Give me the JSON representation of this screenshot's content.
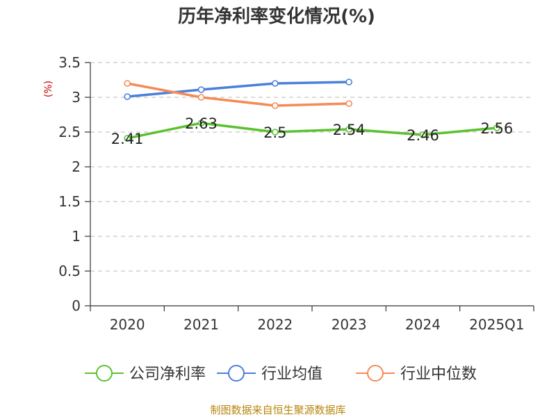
{
  "chart_data": {
    "type": "line",
    "title": "历年净利率变化情况(%)",
    "unit_label": "(%)",
    "categories": [
      "2020",
      "2021",
      "2022",
      "2023",
      "2024",
      "2025Q1"
    ],
    "ylim": [
      0,
      3.5
    ],
    "yticks": [
      0,
      0.5,
      1,
      1.5,
      2,
      2.5,
      3,
      3.5
    ],
    "ytick_labels": [
      "0",
      "0.5",
      "1",
      "1.5",
      "2",
      "2.5",
      "3",
      "3.5"
    ],
    "grid": true,
    "legend_position": "bottom",
    "series": [
      {
        "name": "公司净利率",
        "color": "#5cc130",
        "values": [
          2.41,
          2.63,
          2.5,
          2.54,
          2.46,
          2.56
        ],
        "data_labels": [
          "2.41",
          "2.63",
          "2.5",
          "2.54",
          "2.46",
          "2.56"
        ]
      },
      {
        "name": "行业均值",
        "color": "#4a7fdb",
        "values": [
          3.01,
          3.11,
          3.2,
          3.22,
          null,
          null
        ]
      },
      {
        "name": "行业中位数",
        "color": "#f58a55",
        "values": [
          3.2,
          3.0,
          2.88,
          2.91,
          null,
          null
        ]
      }
    ],
    "source": "制图数据来自恒生聚源数据库"
  }
}
